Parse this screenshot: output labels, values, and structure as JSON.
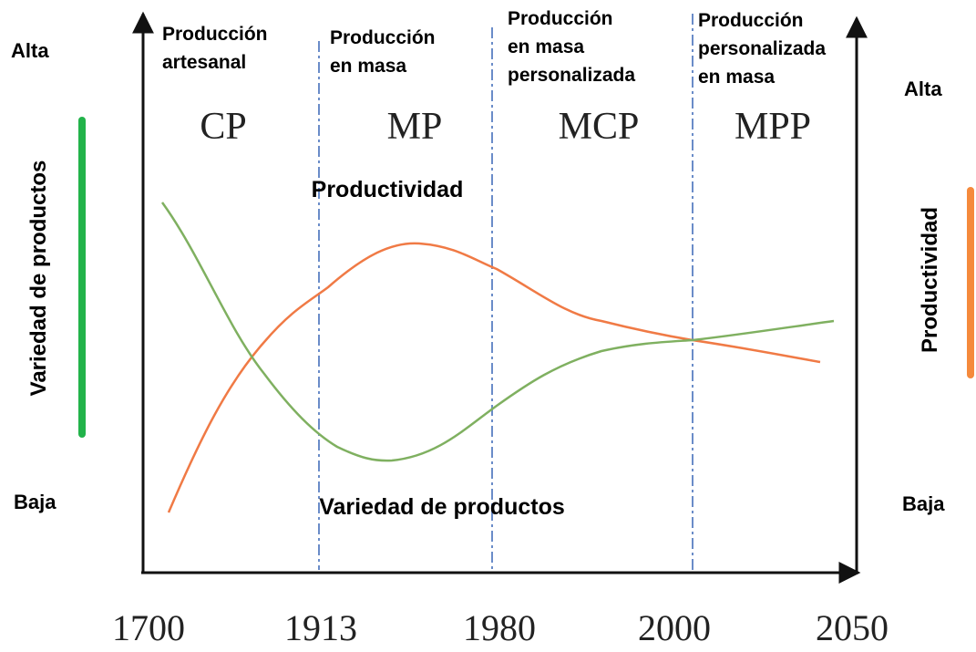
{
  "left_axis": {
    "label": "Variedad de productos",
    "high": "Alta",
    "low": "Baja"
  },
  "right_axis": {
    "label": "Productividad",
    "high": "Alta",
    "low": "Baja"
  },
  "eras": [
    {
      "lines": [
        "Producción",
        "artesanal"
      ],
      "abbr": "CP"
    },
    {
      "lines": [
        "Producción",
        "en masa"
      ],
      "abbr": "MP"
    },
    {
      "lines": [
        "Producción",
        "en masa",
        "personalizada"
      ],
      "abbr": "MCP"
    },
    {
      "lines": [
        "Producción",
        "personalizada",
        "en masa"
      ],
      "abbr": "MPP"
    }
  ],
  "years": [
    "1700",
    "1913",
    "1980",
    "2000",
    "2050"
  ],
  "curve_labels": {
    "productivity": "Productividad",
    "variety": "Variedad de productos"
  }
}
